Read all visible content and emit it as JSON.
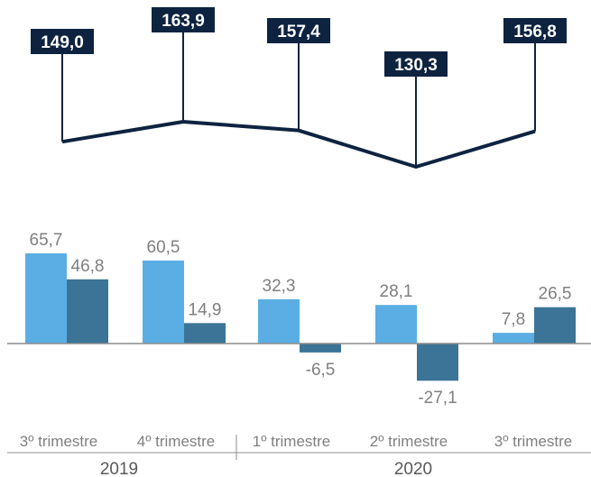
{
  "chart_data": {
    "type": "bar",
    "categories": [
      "3º trimestre",
      "4º trimestre",
      "1º trimestre",
      "2º trimestre",
      "3º trimestre"
    ],
    "groups": [
      {
        "label": "2019",
        "categories": [
          0,
          1
        ]
      },
      {
        "label": "2020",
        "categories": [
          2,
          3,
          4
        ]
      }
    ],
    "line_series": {
      "values": [
        149.0,
        163.9,
        157.4,
        130.3,
        156.8
      ],
      "labels": [
        "149,0",
        "163,9",
        "157,4",
        "130,3",
        "156,8"
      ],
      "color": "#0d2340"
    },
    "series": [
      {
        "values": [
          65.7,
          60.5,
          32.3,
          28.1,
          7.8
        ],
        "labels": [
          "65,7",
          "60,5",
          "32,3",
          "28,1",
          "7,8"
        ],
        "color": "#5aaee3"
      },
      {
        "values": [
          46.8,
          14.9,
          -6.5,
          -27.1,
          26.5
        ],
        "labels": [
          "46,8",
          "14,9",
          "-6,5",
          "-27,1",
          "26,5"
        ],
        "color": "#3b7496"
      }
    ],
    "title": "",
    "xlabel": "",
    "ylabel": "",
    "grid": false,
    "legend": "none"
  },
  "colors": {
    "axis": "#8c8c8c",
    "label_text": "#7f7f7f",
    "box_text": "#ffffff"
  }
}
